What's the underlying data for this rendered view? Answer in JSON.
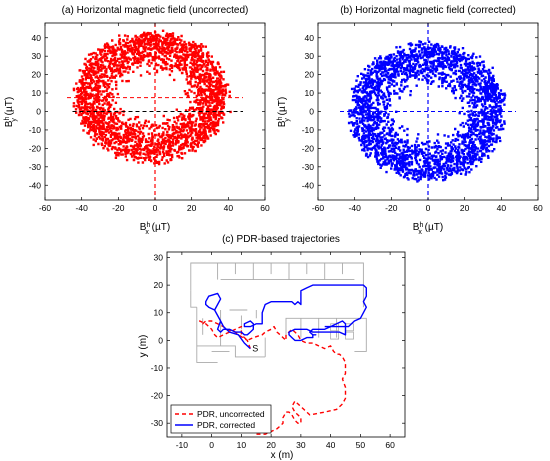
{
  "chart_data": [
    {
      "type": "scatter",
      "title": "(a) Horizontal magnetic field (uncorrected)",
      "xlabel_main": "B",
      "xlabel_sup": "h",
      "xlabel_sub": "x",
      "xlabel_unit": " (µT)",
      "ylabel_main": "B",
      "ylabel_sup": "h",
      "ylabel_sub": "y",
      "ylabel_unit": " (µT)",
      "xlim": [
        -60,
        60
      ],
      "ylim": [
        -48,
        48
      ],
      "xticks": [
        -60,
        -40,
        -20,
        0,
        20,
        40,
        60
      ],
      "yticks": [
        -40,
        -30,
        -20,
        -10,
        0,
        10,
        20,
        30,
        40
      ],
      "grid": false,
      "color": "#ff0000",
      "ring": {
        "center": [
          -2,
          8
        ],
        "rx_outer": 41,
        "ry_outer": 34,
        "rx_inner": 19,
        "ry_inner": 13
      },
      "crosshair": {
        "x": 0,
        "y": 7.5,
        "color": "#ff0000"
      },
      "reference_axes": {
        "x": 0,
        "y": 0,
        "color": "#000000"
      }
    },
    {
      "type": "scatter",
      "title": "(b) Horizontal magnetic field (corrected)",
      "xlabel_main": "B",
      "xlabel_sup": "h",
      "xlabel_sub": "x",
      "xlabel_unit": " (µT)",
      "ylabel_main": "B",
      "ylabel_sup": "h",
      "ylabel_sub": "y",
      "ylabel_unit": " (µT)",
      "xlim": [
        -60,
        60
      ],
      "ylim": [
        -48,
        48
      ],
      "xticks": [
        -60,
        -40,
        -20,
        0,
        20,
        40,
        60
      ],
      "yticks": [
        -40,
        -30,
        -20,
        -10,
        0,
        10,
        20,
        30,
        40
      ],
      "grid": false,
      "color": "#0000ff",
      "ring": {
        "center": [
          0,
          0
        ],
        "rx_outer": 41,
        "ry_outer": 36,
        "rx_inner": 19,
        "ry_inner": 14
      },
      "crosshair": {
        "x": 0,
        "y": 0,
        "color": "#0000ff"
      }
    },
    {
      "type": "line",
      "title": "(c) PDR-based trajectories",
      "xlabel": "x (m)",
      "ylabel": "y (m)",
      "xlim": [
        -15,
        65
      ],
      "ylim": [
        -35,
        32
      ],
      "xticks": [
        -10,
        0,
        10,
        20,
        30,
        40,
        50,
        60
      ],
      "yticks": [
        -30,
        -20,
        -10,
        0,
        10,
        20,
        30
      ],
      "grid": false,
      "start_label": "S",
      "start_point": [
        13,
        -3
      ],
      "legend_position": "bottom-left",
      "series": [
        {
          "name": "PDR, uncorrected",
          "color": "#ff0000",
          "dash": "4,3",
          "x": [
            13,
            12,
            9,
            8,
            5,
            4,
            2,
            0,
            -1,
            -2,
            -3,
            -4,
            -2,
            0,
            1,
            2,
            4,
            6,
            8,
            10,
            10,
            11,
            12,
            14,
            17,
            18,
            20,
            21,
            22,
            23,
            24,
            25,
            25,
            27,
            29,
            30,
            32,
            34,
            36,
            38,
            40,
            41,
            42,
            43,
            44,
            45,
            45,
            44,
            45,
            45,
            44,
            42,
            38,
            33,
            31,
            30,
            29,
            28,
            27,
            28,
            29,
            30,
            30,
            29,
            28,
            27,
            26,
            25,
            24,
            24,
            23,
            22,
            20,
            18,
            15
          ],
          "y": [
            -3,
            0,
            2,
            3,
            4,
            5,
            6,
            7,
            7,
            7,
            6,
            7,
            6,
            4,
            2,
            1,
            2,
            3,
            4,
            5,
            2,
            1,
            0,
            1,
            2,
            3,
            4,
            5,
            3,
            2,
            1,
            0,
            2,
            4,
            2,
            0,
            -1,
            -1,
            -2,
            -3,
            -2,
            -4,
            -5,
            -5,
            -6,
            -8,
            -12,
            -14,
            -17,
            -21,
            -23,
            -25,
            -26,
            -27,
            -25,
            -24,
            -23,
            -22,
            -24,
            -26,
            -27,
            -28,
            -30,
            -30,
            -29,
            -27,
            -26,
            -26,
            -28,
            -30,
            -31,
            -32,
            -33,
            -34,
            -34
          ]
        },
        {
          "name": "PDR, corrected",
          "color": "#0000ff",
          "dash": "",
          "x": [
            13,
            11,
            9,
            6,
            4,
            3,
            2,
            1,
            2,
            3,
            2,
            -1,
            -2,
            -2,
            -1,
            1,
            2,
            3,
            2,
            3,
            4,
            6,
            8,
            10,
            11,
            12,
            13,
            14,
            14,
            13,
            11,
            11,
            13,
            15,
            17,
            17,
            18,
            20,
            23,
            26,
            27,
            28,
            29,
            30,
            30,
            32,
            34,
            36,
            40,
            44,
            48,
            51,
            52,
            52,
            51,
            52,
            51,
            50,
            48,
            47,
            46,
            44,
            42,
            40,
            38,
            36,
            34,
            33,
            33,
            34,
            35,
            34,
            34,
            32,
            30,
            28,
            27,
            26,
            26,
            28,
            30,
            32,
            34,
            36,
            38,
            40,
            43,
            45,
            45,
            45,
            44,
            42,
            40,
            38
          ],
          "y": [
            -3,
            -1,
            2,
            3,
            5,
            7,
            9,
            11,
            13,
            15,
            17,
            16,
            14,
            13,
            12,
            11,
            9,
            7,
            4,
            3,
            4,
            4,
            3,
            3,
            2,
            2,
            3,
            4,
            6,
            7,
            6,
            5,
            5,
            6,
            6,
            10,
            13,
            14,
            14,
            14,
            14,
            13,
            14,
            13,
            18,
            19,
            20,
            20,
            20,
            20,
            20,
            20,
            19,
            16,
            14,
            12,
            10,
            8,
            7,
            6,
            5,
            5,
            5,
            5,
            4,
            4,
            4,
            3,
            3,
            2,
            2,
            2,
            1,
            1,
            0,
            0,
            1,
            2,
            3,
            4,
            4,
            4,
            3,
            3,
            3,
            3,
            3,
            2,
            4,
            6,
            7,
            6,
            5,
            5
          ]
        }
      ]
    }
  ]
}
